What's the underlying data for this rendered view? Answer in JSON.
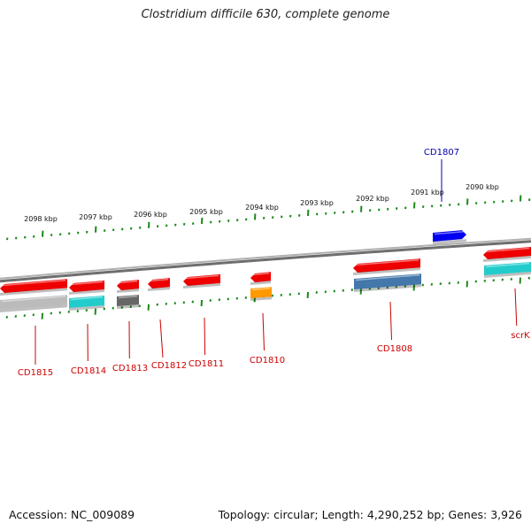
{
  "title": "Clostridium difficile 630, complete genome",
  "footer": {
    "accession": "Accession: NC_009089",
    "summary": "Topology: circular; Length: 4,290,252 bp; Genes: 3,926"
  },
  "colors": {
    "backbone": "#8c8c8c",
    "tick": "#1a8a1a",
    "label_red": "#cc0000",
    "label_blue": "#0000aa",
    "gene_red": "#ee0000",
    "gene_grey": "#bbbbbb",
    "gene_cyan": "#22cccc",
    "gene_darkgrey": "#666666",
    "gene_orange": "#ff9900",
    "gene_steel": "#4477aa",
    "gene_blue": "#0000ee"
  },
  "ruler": {
    "labels": [
      "2098 kbp",
      "2097 kbp",
      "2096 kbp",
      "2095 kbp",
      "2094 kbp",
      "2093 kbp",
      "2092 kbp",
      "2091 kbp",
      "2090 kbp"
    ]
  },
  "genes": [
    {
      "name": "CD1815",
      "color": "red"
    },
    {
      "name": "CD1814",
      "color": "red"
    },
    {
      "name": "CD1813",
      "color": "red"
    },
    {
      "name": "CD1812",
      "color": "red"
    },
    {
      "name": "CD1811",
      "color": "red"
    },
    {
      "name": "CD1810",
      "color": "red"
    },
    {
      "name": "CD1808",
      "color": "red"
    },
    {
      "name": "scrK",
      "color": "red"
    },
    {
      "name": "CD1807",
      "color": "blue"
    }
  ]
}
